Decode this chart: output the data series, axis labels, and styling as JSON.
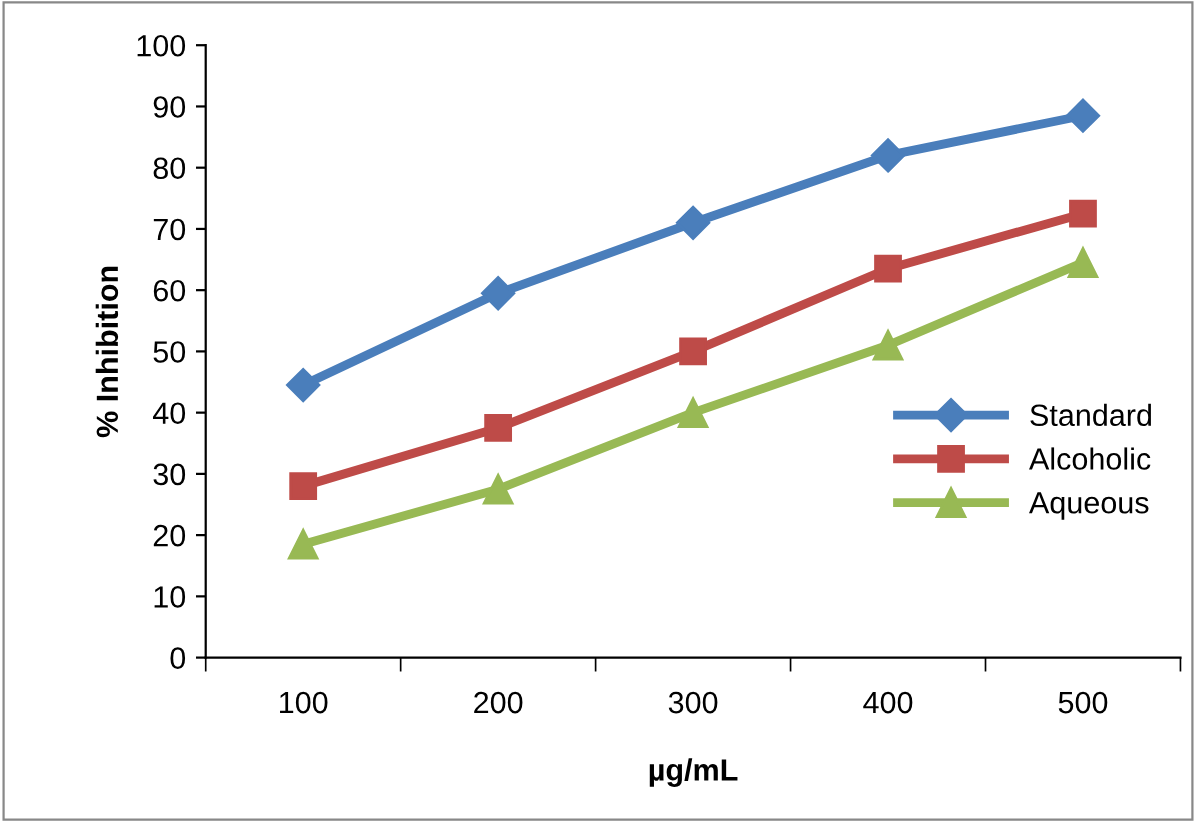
{
  "chart_data": {
    "type": "line",
    "xlabel": "µg/mL",
    "ylabel": "% Inhibition",
    "categories": [
      "100",
      "200",
      "300",
      "400",
      "500"
    ],
    "series": [
      {
        "name": "Standard",
        "color": "#4a7ebb",
        "marker": "diamond",
        "values": [
          44.5,
          59.5,
          71,
          82,
          88.5
        ]
      },
      {
        "name": "Alcoholic",
        "color": "#be4b48",
        "marker": "square",
        "values": [
          28,
          37.5,
          50,
          63.5,
          72.5
        ]
      },
      {
        "name": "Aqueous",
        "color": "#98b954",
        "marker": "triangle",
        "values": [
          18.5,
          27.5,
          40,
          51,
          64.5
        ]
      }
    ],
    "ylim": [
      0,
      100
    ],
    "yticks": [
      0,
      10,
      20,
      30,
      40,
      50,
      60,
      70,
      80,
      90,
      100
    ],
    "grid": false,
    "legend": "center right",
    "line_style": "solid"
  }
}
